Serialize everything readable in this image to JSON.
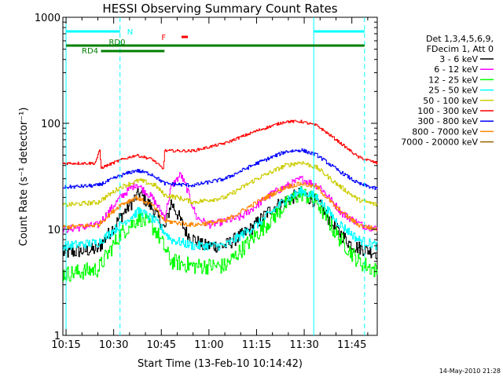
{
  "chart_data": {
    "type": "line",
    "title": "HESSI Observing Summary Count Rates",
    "xlabel": "Start Time (13-Feb-10 10:14:42)",
    "ylabel": "Count Rate (s⁻¹ detector⁻¹)",
    "y_scale": "log",
    "ylim": [
      1,
      1000
    ],
    "xlim": [
      "10:14:42",
      "11:53:00"
    ],
    "x_ticks": [
      "10:15",
      "10:30",
      "10:45",
      "11:00",
      "11:15",
      "11:30",
      "11:45"
    ],
    "y_ticks": [
      "1",
      "10",
      "100",
      "1000"
    ],
    "footer": "14-May-2010 21:28",
    "legend": {
      "placement": "right",
      "header": [
        "Det 1,3,4,5,6,9,",
        "FDecim 1, Att 0"
      ],
      "entries": [
        {
          "label": "3 - 6 keV",
          "color": "#000000"
        },
        {
          "label": "6 - 12 keV",
          "color": "#ff00ff"
        },
        {
          "label": "12 - 25 keV",
          "color": "#00ff00"
        },
        {
          "label": "25 - 50 keV",
          "color": "#00ffff"
        },
        {
          "label": "50 - 100 keV",
          "color": "#cccc00"
        },
        {
          "label": "100 - 300 keV",
          "color": "#ff0000"
        },
        {
          "label": "300 - 800 keV",
          "color": "#0000ff"
        },
        {
          "label": "800 - 7000 keV",
          "color": "#ff8800"
        },
        {
          "label": "7000 - 20000 keV",
          "color": "#996600"
        }
      ]
    },
    "flags": [
      {
        "label": "N",
        "color": "#00ffff",
        "spans": [
          [
            "10:15",
            "10:32"
          ],
          [
            "11:33",
            "11:49"
          ]
        ]
      },
      {
        "label": "RD0",
        "color": "#008000",
        "spans": [
          [
            "10:15",
            "11:49"
          ]
        ]
      },
      {
        "label": "RD4",
        "color": "#008000",
        "spans": [
          [
            "10:26",
            "10:46"
          ]
        ]
      },
      {
        "label": "F",
        "color": "#ff0000",
        "spans": [
          [
            "10:49",
            "10:50"
          ]
        ]
      }
    ],
    "vertical_markers": [
      {
        "time": "10:15",
        "style": "solid",
        "color": "#00ffff"
      },
      {
        "time": "10:32",
        "style": "dashed",
        "color": "#00ffff"
      },
      {
        "time": "11:33",
        "style": "solid",
        "color": "#00ffff"
      },
      {
        "time": "11:49",
        "style": "dashed",
        "color": "#00ffff"
      }
    ],
    "series": [
      {
        "name": "3 - 6 keV",
        "color": "#000000",
        "noise": 0.15,
        "points": [
          [
            "10:15",
            6
          ],
          [
            "10:25",
            6.5
          ],
          [
            "10:32",
            13
          ],
          [
            "10:38",
            22
          ],
          [
            "10:42",
            16
          ],
          [
            "10:46",
            10
          ],
          [
            "10:48",
            18
          ],
          [
            "10:50",
            14
          ],
          [
            "10:53",
            9
          ],
          [
            "10:58",
            7
          ],
          [
            "11:05",
            7
          ],
          [
            "11:13",
            10
          ],
          [
            "11:20",
            16
          ],
          [
            "11:29",
            22
          ],
          [
            "11:34",
            18
          ],
          [
            "11:40",
            10
          ],
          [
            "11:45",
            7
          ],
          [
            "11:53",
            6
          ]
        ]
      },
      {
        "name": "6 - 12 keV",
        "color": "#ff00ff",
        "noise": 0.08,
        "points": [
          [
            "10:15",
            10
          ],
          [
            "10:25",
            11
          ],
          [
            "10:32",
            20
          ],
          [
            "10:37",
            27
          ],
          [
            "10:42",
            20
          ],
          [
            "10:46",
            13
          ],
          [
            "10:48",
            25
          ],
          [
            "10:51",
            33
          ],
          [
            "10:53",
            24
          ],
          [
            "10:56",
            13
          ],
          [
            "11:00",
            11
          ],
          [
            "11:10",
            13
          ],
          [
            "11:20",
            22
          ],
          [
            "11:29",
            30
          ],
          [
            "11:35",
            25
          ],
          [
            "11:42",
            14
          ],
          [
            "11:48",
            11
          ],
          [
            "11:53",
            10
          ]
        ]
      },
      {
        "name": "12 - 25 keV",
        "color": "#00ff00",
        "noise": 0.18,
        "points": [
          [
            "10:15",
            3.8
          ],
          [
            "10:25",
            4.2
          ],
          [
            "10:32",
            9
          ],
          [
            "10:38",
            13
          ],
          [
            "10:43",
            10
          ],
          [
            "10:48",
            5
          ],
          [
            "10:55",
            4.5
          ],
          [
            "11:05",
            4.5
          ],
          [
            "11:15",
            9
          ],
          [
            "11:24",
            17
          ],
          [
            "11:29",
            22
          ],
          [
            "11:34",
            18
          ],
          [
            "11:40",
            9
          ],
          [
            "11:47",
            5
          ],
          [
            "11:53",
            4
          ]
        ]
      },
      {
        "name": "25 - 50 keV",
        "color": "#00ffff",
        "noise": 0.1,
        "points": [
          [
            "10:15",
            7
          ],
          [
            "10:25",
            7.5
          ],
          [
            "10:32",
            11
          ],
          [
            "10:38",
            15
          ],
          [
            "10:43",
            12
          ],
          [
            "10:48",
            8
          ],
          [
            "10:55",
            7
          ],
          [
            "11:05",
            7
          ],
          [
            "11:15",
            11
          ],
          [
            "11:24",
            19
          ],
          [
            "11:29",
            23
          ],
          [
            "11:34",
            20
          ],
          [
            "11:40",
            12
          ],
          [
            "11:47",
            8
          ],
          [
            "11:53",
            7
          ]
        ]
      },
      {
        "name": "50 - 100 keV",
        "color": "#cccc00",
        "noise": 0.05,
        "points": [
          [
            "10:15",
            17
          ],
          [
            "10:25",
            18
          ],
          [
            "10:32",
            25
          ],
          [
            "10:38",
            29
          ],
          [
            "10:43",
            26
          ],
          [
            "10:46",
            21
          ],
          [
            "10:50",
            20
          ],
          [
            "10:55",
            18
          ],
          [
            "11:05",
            20
          ],
          [
            "11:15",
            30
          ],
          [
            "11:24",
            40
          ],
          [
            "11:29",
            43
          ],
          [
            "11:34",
            38
          ],
          [
            "11:40",
            27
          ],
          [
            "11:47",
            19
          ],
          [
            "11:53",
            17
          ]
        ]
      },
      {
        "name": "100 - 300 keV",
        "color": "#ff0000",
        "noise": 0.03,
        "points": [
          [
            "10:15",
            42
          ],
          [
            "10:24",
            42
          ],
          [
            "10:25.5",
            55
          ],
          [
            "10:26",
            38
          ],
          [
            "10:32",
            45
          ],
          [
            "10:37",
            50
          ],
          [
            "10:42",
            46
          ],
          [
            "10:45.5",
            37
          ],
          [
            "10:46",
            55
          ],
          [
            "10:55",
            55
          ],
          [
            "11:05",
            65
          ],
          [
            "11:15",
            85
          ],
          [
            "11:24",
            104
          ],
          [
            "11:29",
            104
          ],
          [
            "11:34",
            95
          ],
          [
            "11:40",
            70
          ],
          [
            "11:47",
            48
          ],
          [
            "11:53",
            42
          ]
        ]
      },
      {
        "name": "300 - 800 keV",
        "color": "#0000ff",
        "noise": 0.04,
        "points": [
          [
            "10:15",
            25
          ],
          [
            "10:25",
            26
          ],
          [
            "10:32",
            32
          ],
          [
            "10:37",
            36
          ],
          [
            "10:42",
            33
          ],
          [
            "10:46",
            27
          ],
          [
            "10:55",
            26
          ],
          [
            "11:05",
            30
          ],
          [
            "11:15",
            42
          ],
          [
            "11:24",
            54
          ],
          [
            "11:29",
            56
          ],
          [
            "11:34",
            50
          ],
          [
            "11:40",
            37
          ],
          [
            "11:47",
            27
          ],
          [
            "11:53",
            24
          ]
        ]
      },
      {
        "name": "800 - 7000 keV",
        "color": "#ff8800",
        "noise": 0.05,
        "points": [
          [
            "10:15",
            10.5
          ],
          [
            "10:25",
            11
          ],
          [
            "10:32",
            17
          ],
          [
            "10:37",
            20
          ],
          [
            "10:42",
            17
          ],
          [
            "10:46",
            12
          ],
          [
            "10:55",
            11
          ],
          [
            "11:05",
            12
          ],
          [
            "11:15",
            18
          ],
          [
            "11:24",
            25
          ],
          [
            "11:29",
            27
          ],
          [
            "11:34",
            25
          ],
          [
            "11:40",
            16
          ],
          [
            "11:47",
            11
          ],
          [
            "11:53",
            10
          ]
        ]
      }
    ]
  }
}
